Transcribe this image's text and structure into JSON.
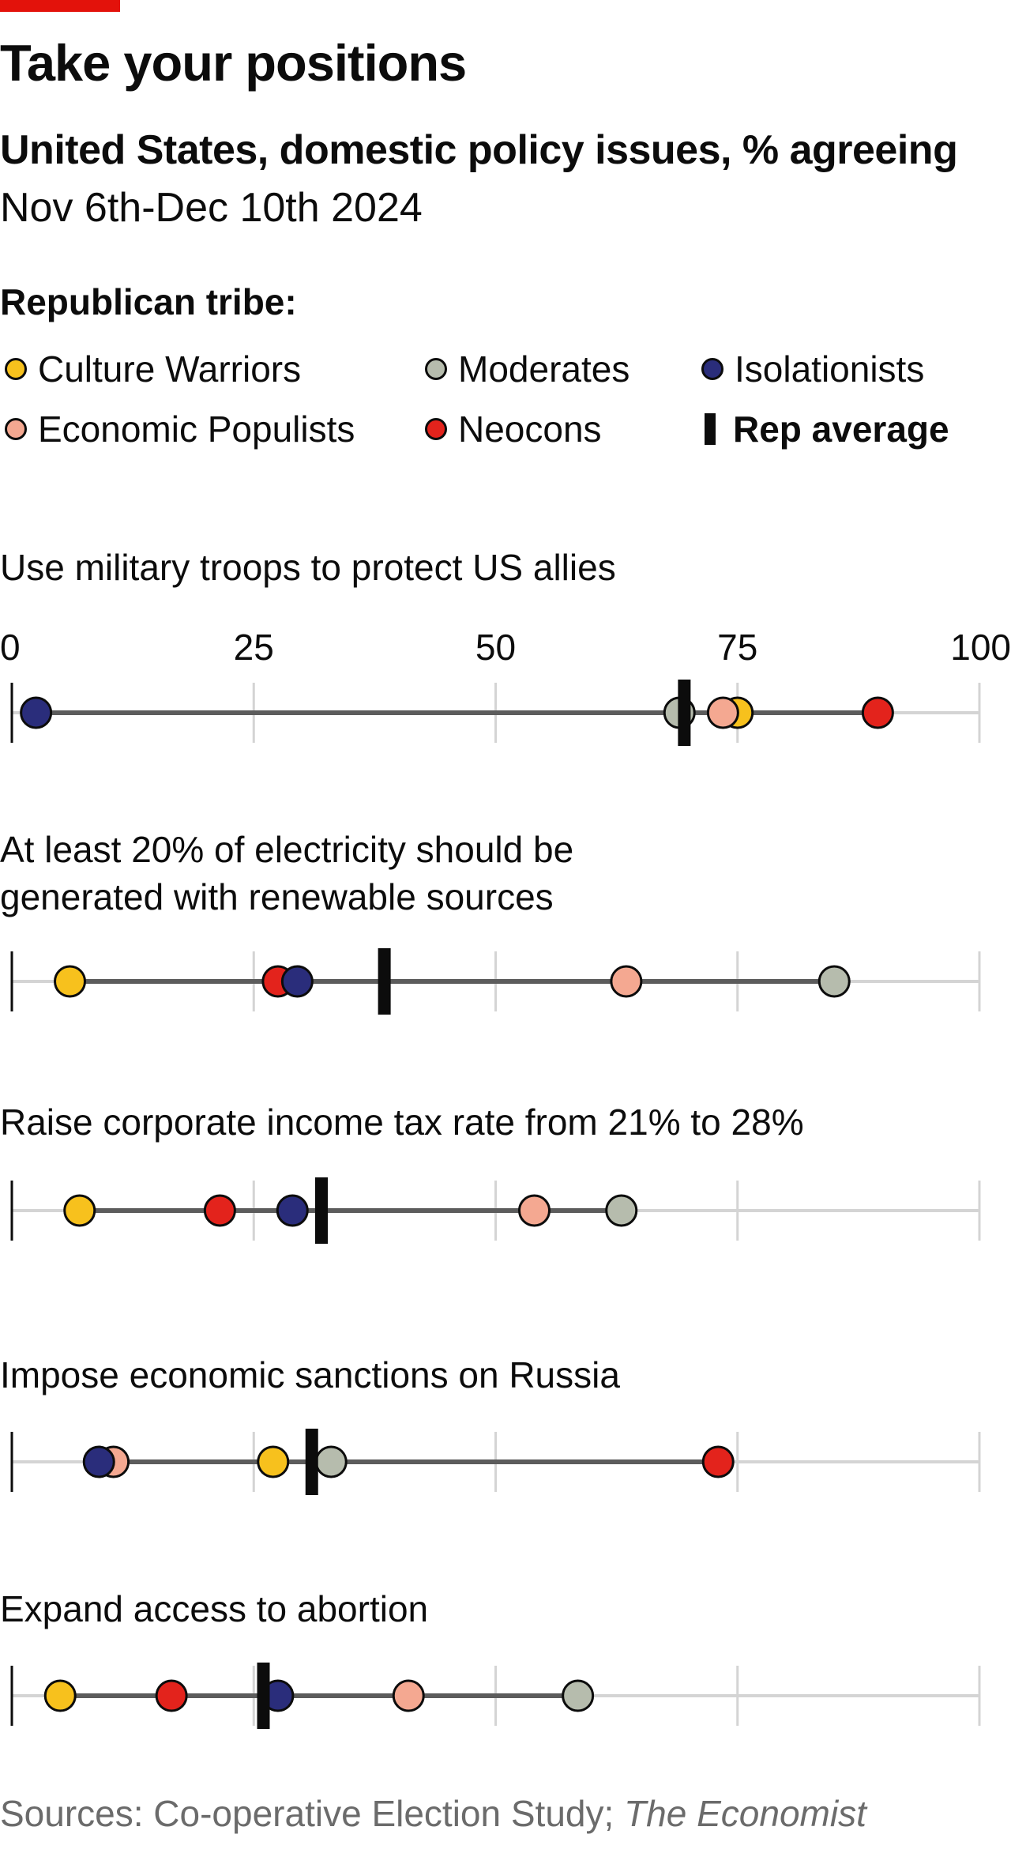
{
  "header": {
    "title": "Take your positions",
    "subtitle": "United States, domestic policy issues, % agreeing",
    "dates": "Nov 6th-Dec 10th 2024"
  },
  "legend": {
    "title": "Republican tribe:",
    "items": [
      {
        "label": "Culture Warriors",
        "color": "#f7c11d"
      },
      {
        "label": "Moderates",
        "color": "#b6bcad"
      },
      {
        "label": "Isolationists",
        "color": "#2a2d7b"
      },
      {
        "label": "Economic Populists",
        "color": "#f4a891"
      },
      {
        "label": "Neocons",
        "color": "#e3231c"
      },
      {
        "label": "Rep average",
        "type": "bar"
      }
    ]
  },
  "source": {
    "prefix": "Sources: Co-operative Election Study; ",
    "emph": "The Economist"
  },
  "chart_data": {
    "type": "scatter",
    "xlim": [
      0,
      100
    ],
    "x_ticks": [
      "0",
      "25",
      "50",
      "75",
      "100"
    ],
    "grid": true,
    "series": [
      {
        "name": "Culture Warriors",
        "color": "#f7c11d"
      },
      {
        "name": "Economic Populists",
        "color": "#f4a891"
      },
      {
        "name": "Moderates",
        "color": "#b6bcad"
      },
      {
        "name": "Neocons",
        "color": "#e3231c"
      },
      {
        "name": "Isolationists",
        "color": "#2a2d7b"
      }
    ],
    "rows": [
      {
        "question": [
          "Use military troops to protect US allies"
        ],
        "values": {
          "Culture Warriors": 75,
          "Economic Populists": 73.5,
          "Moderates": 69,
          "Neocons": 89.5,
          "Isolationists": 2.5
        },
        "rep_average": 69.5
      },
      {
        "question": [
          "At least 20% of electricity should be",
          "generated with renewable sources"
        ],
        "values": {
          "Culture Warriors": 6,
          "Economic Populists": 63.5,
          "Moderates": 85,
          "Neocons": 27.5,
          "Isolationists": 29.5
        },
        "rep_average": 38.5
      },
      {
        "question": [
          "Raise corporate income tax rate from 21% to 28%"
        ],
        "values": {
          "Culture Warriors": 7,
          "Economic Populists": 54,
          "Moderates": 63,
          "Neocons": 21.5,
          "Isolationists": 29
        },
        "rep_average": 32
      },
      {
        "question": [
          "Impose economic sanctions on Russia"
        ],
        "values": {
          "Culture Warriors": 27,
          "Economic Populists": 10.5,
          "Moderates": 33,
          "Neocons": 73,
          "Isolationists": 9
        },
        "rep_average": 31
      },
      {
        "question": [
          "Expand access to abortion"
        ],
        "values": {
          "Culture Warriors": 5,
          "Economic Populists": 41,
          "Moderates": 58.5,
          "Neocons": 16.5,
          "Isolationists": 27.5
        },
        "rep_average": 26
      }
    ]
  }
}
